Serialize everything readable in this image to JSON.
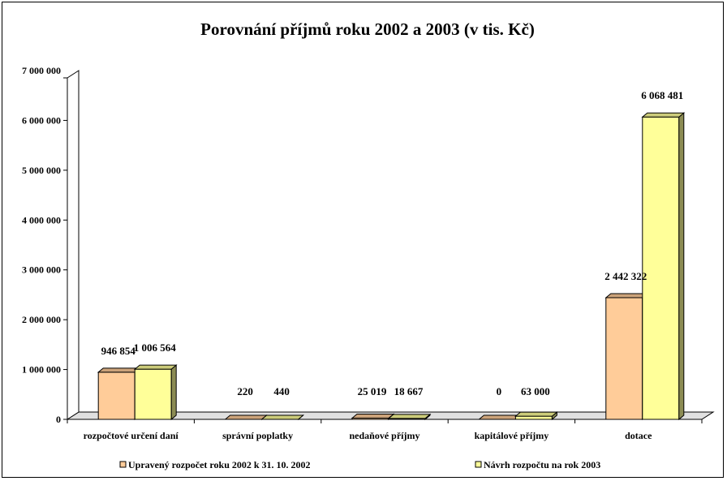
{
  "chart_data": {
    "type": "bar",
    "title": "Porovnání příjmů roku 2002 a 2003 (v tis. Kč)",
    "xlabel": "",
    "ylabel": "",
    "ylim": [
      0,
      7000000
    ],
    "yticks": [
      0,
      1000000,
      2000000,
      3000000,
      4000000,
      5000000,
      6000000,
      7000000
    ],
    "ytick_labels": [
      "0",
      "1 000 000",
      "2 000 000",
      "3 000 000",
      "4 000 000",
      "5 000 000",
      "6 000 000",
      "7 000 000"
    ],
    "grid": false,
    "legend_position": "bottom",
    "categories": [
      "rozpočtové určení daní",
      "správní poplatky",
      "nedaňové příjmy",
      "kapitálové příjmy",
      "dotace"
    ],
    "series": [
      {
        "name": "Upravený rozpočet roku 2002 k 31. 10. 2002",
        "color": "#ffcc99",
        "values": [
          946854,
          220,
          25019,
          0,
          2442322
        ],
        "labels": [
          "946 854",
          "220",
          "25 019",
          "0",
          "2 442 322"
        ]
      },
      {
        "name": "Návrh rozpočtu na rok 2003",
        "color": "#ffff99",
        "values": [
          1006564,
          440,
          18667,
          63000,
          6068481
        ],
        "labels": [
          "1 006 564",
          "440",
          "18 667",
          "63 000",
          "6 068 481"
        ]
      }
    ]
  }
}
